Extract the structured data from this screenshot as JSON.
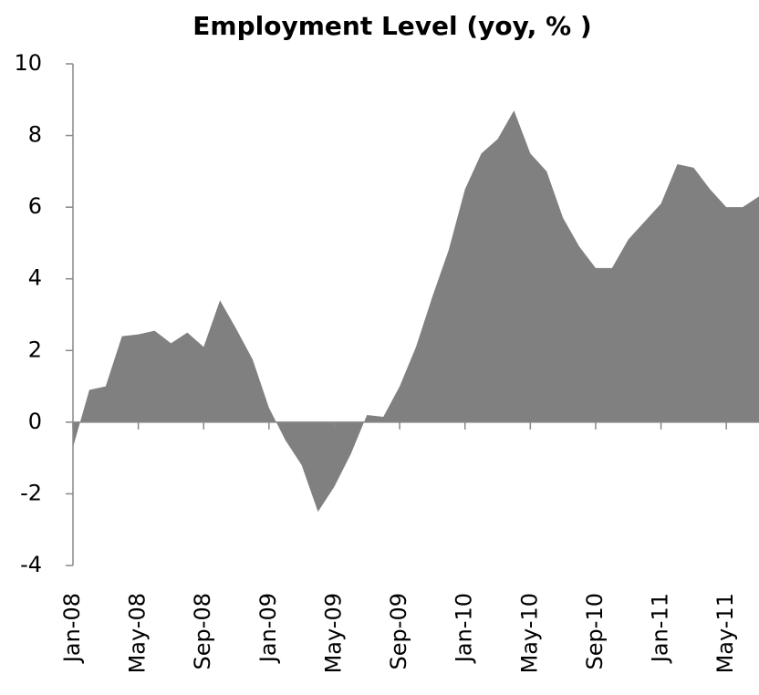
{
  "chart_data": {
    "type": "area",
    "title": "Employment Level (yoy, % )",
    "categories": [
      "Jan-08",
      null,
      null,
      null,
      "May-08",
      null,
      null,
      null,
      "Sep-08",
      null,
      null,
      null,
      "Jan-09",
      null,
      null,
      null,
      "May-09",
      null,
      null,
      null,
      "Sep-09",
      null,
      null,
      null,
      "Jan-10",
      null,
      null,
      null,
      "May-10",
      null,
      null,
      null,
      "Sep-10",
      null,
      null,
      null,
      "Jan-11",
      null,
      null,
      null,
      "May-11",
      null,
      null
    ],
    "values": [
      -0.7,
      0.9,
      1.0,
      2.4,
      2.45,
      2.55,
      2.2,
      2.5,
      2.1,
      3.4,
      2.6,
      1.75,
      0.4,
      -0.5,
      -1.2,
      -2.5,
      -1.8,
      -0.9,
      0.2,
      0.15,
      1.0,
      2.1,
      3.5,
      4.8,
      6.5,
      7.5,
      7.9,
      8.7,
      7.5,
      7.0,
      5.7,
      4.9,
      4.3,
      4.3,
      5.1,
      5.6,
      6.1,
      7.2,
      7.1,
      6.5,
      6.0,
      6.0,
      6.3
    ],
    "color": "#808080",
    "ylim": [
      -4,
      10
    ],
    "yticks": [
      -4,
      -2,
      0,
      2,
      4,
      6,
      8,
      10
    ]
  }
}
